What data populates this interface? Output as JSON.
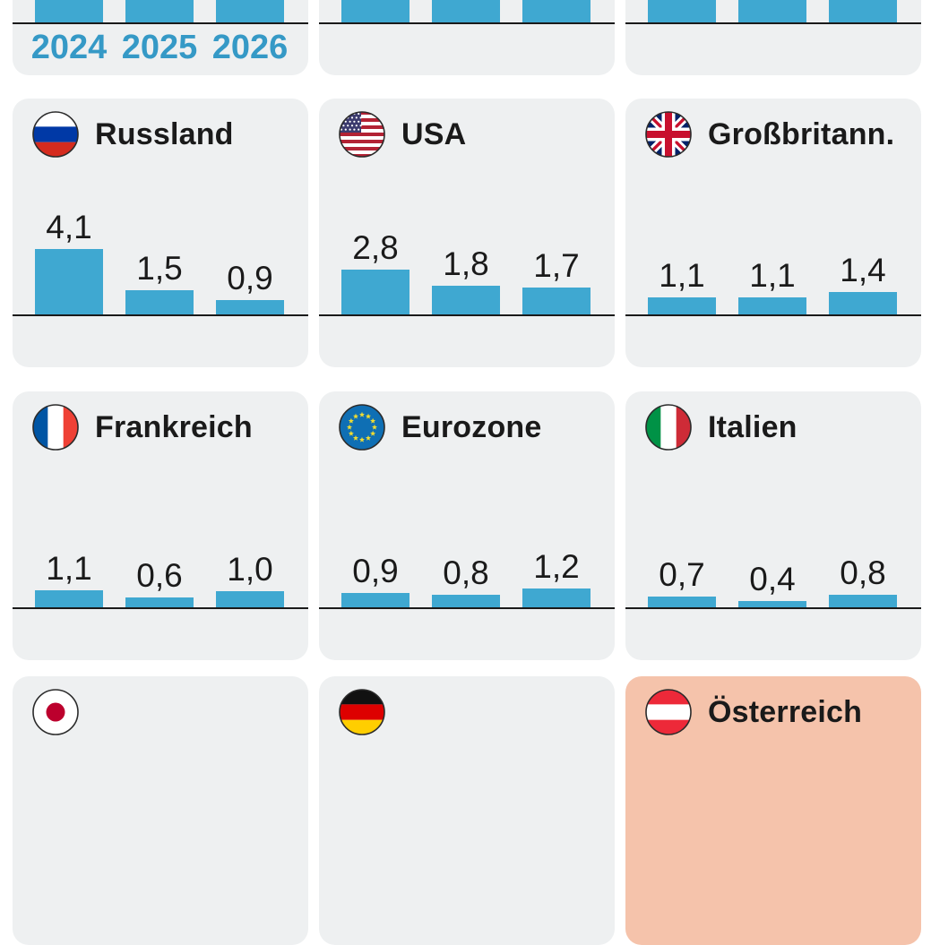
{
  "years": [
    "2024",
    "2025",
    "2026"
  ],
  "style": {
    "bar_color": "#3fa8d1",
    "year_label_color": "#3599c6",
    "panel_bg": "#eef0f1",
    "highlight_bg": "#f5c3ab",
    "baseline_color": "#1a1a1a",
    "text_color": "#1a1a1a",
    "page_bg": "#ffffff"
  },
  "panels": [
    {
      "id": "top-left-partial",
      "bars_cut": true,
      "show_years": true
    },
    {
      "id": "top-middle-partial",
      "bars_cut": true
    },
    {
      "id": "top-right-partial",
      "bars_cut": true
    },
    {
      "id": "russland",
      "title": "Russland",
      "flag": "russia-flag-icon",
      "values": [
        4.1,
        1.5,
        0.9
      ],
      "labels": [
        "4,1",
        "1,5",
        "0,9"
      ]
    },
    {
      "id": "usa",
      "title": "USA",
      "flag": "usa-flag-icon",
      "values": [
        2.8,
        1.8,
        1.7
      ],
      "labels": [
        "2,8",
        "1,8",
        "1,7"
      ]
    },
    {
      "id": "grossbritann",
      "title": "Großbritann.",
      "flag": "uk-flag-icon",
      "values": [
        1.1,
        1.1,
        1.4
      ],
      "labels": [
        "1,1",
        "1,1",
        "1,4"
      ]
    },
    {
      "id": "frankreich",
      "title": "Frankreich",
      "flag": "france-flag-icon",
      "values": [
        1.1,
        0.6,
        1.0
      ],
      "labels": [
        "1,1",
        "0,6",
        "1,0"
      ]
    },
    {
      "id": "eurozone",
      "title": "Eurozone",
      "flag": "eu-flag-icon",
      "values": [
        0.9,
        0.8,
        1.2
      ],
      "labels": [
        "0,9",
        "0,8",
        "1,2"
      ]
    },
    {
      "id": "italien",
      "title": "Italien",
      "flag": "italy-flag-icon",
      "values": [
        0.7,
        0.4,
        0.8
      ],
      "labels": [
        "0,7",
        "0,4",
        "0,8"
      ]
    },
    {
      "id": "bottom-left-partial",
      "title": "",
      "flag": "japan-flag-icon"
    },
    {
      "id": "bottom-middle-partial",
      "title": "",
      "flag": "germany-flag-icon"
    },
    {
      "id": "oesterreich-partial",
      "title": "Österreich",
      "flag": "austria-flag-icon",
      "highlight": true
    }
  ],
  "chart_data": {
    "type": "bar",
    "categories": [
      "2024",
      "2025",
      "2026"
    ],
    "ylabel": "",
    "xlabel": "",
    "grid": false,
    "legend_position": "below-first-panel",
    "series": [
      {
        "name": "Russland",
        "values": [
          4.1,
          1.5,
          0.9
        ]
      },
      {
        "name": "USA",
        "values": [
          2.8,
          1.8,
          1.7
        ]
      },
      {
        "name": "Großbritann.",
        "values": [
          1.1,
          1.1,
          1.4
        ]
      },
      {
        "name": "Frankreich",
        "values": [
          1.1,
          0.6,
          1.0
        ]
      },
      {
        "name": "Eurozone",
        "values": [
          0.9,
          0.8,
          1.2
        ]
      },
      {
        "name": "Italien",
        "values": [
          0.7,
          0.4,
          0.8
        ]
      }
    ],
    "partial_panels": {
      "top_row_cropped": 3,
      "bottom_row_cropped": [
        {
          "flag": "japan-flag-icon"
        },
        {
          "flag": "germany-flag-icon"
        },
        {
          "flag": "austria-flag-icon",
          "highlighted": true,
          "title": "Österreich"
        }
      ]
    }
  }
}
